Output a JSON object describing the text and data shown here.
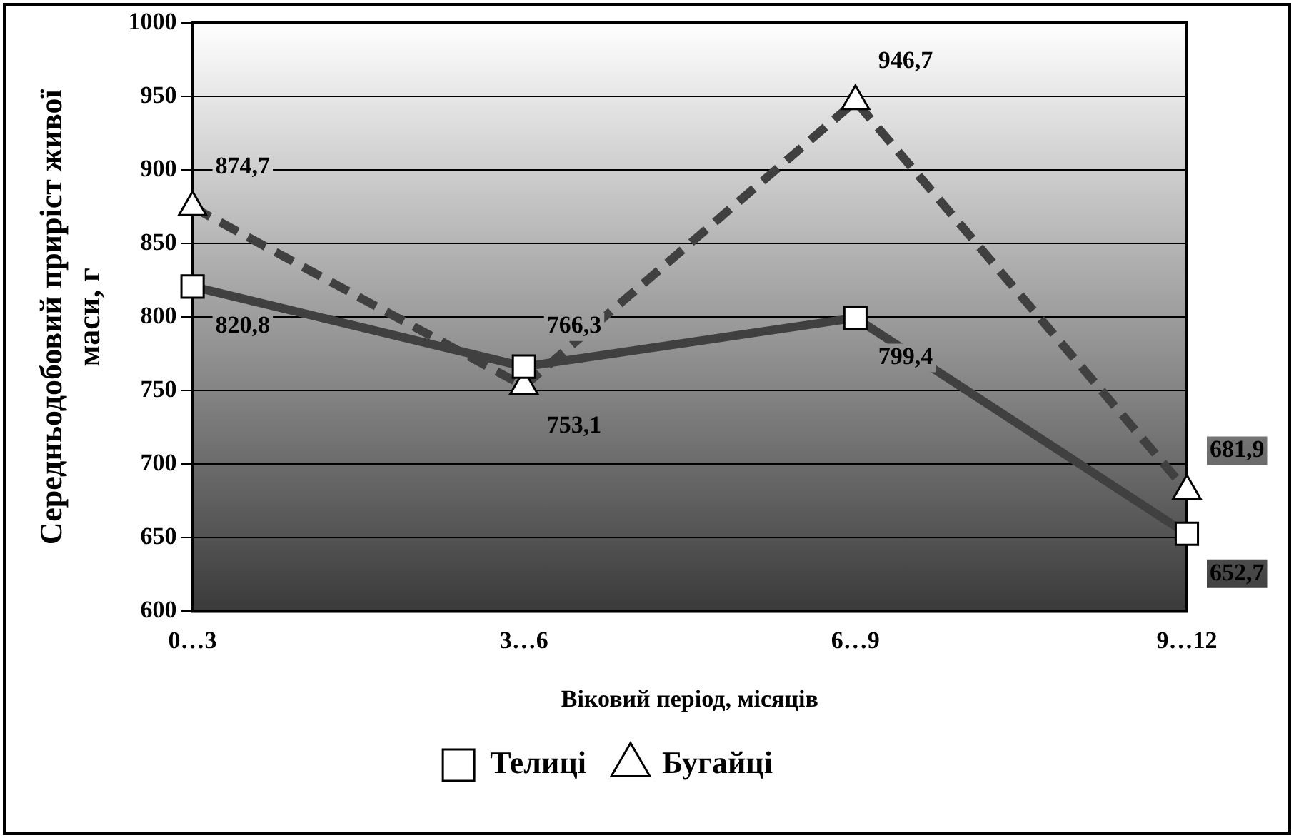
{
  "chart_data": {
    "type": "line",
    "xlabel": "Віковий період, місяців",
    "ylabel": "Середньодобовий приріст живої маси, г",
    "categories": [
      "0…3",
      "3…6",
      "6…9",
      "9…12"
    ],
    "series": [
      {
        "name": "Телиці",
        "color": "#404040",
        "values": [
          820.8,
          766.3,
          799.4,
          652.7
        ],
        "value_labels": [
          "820,8",
          "766,3",
          "799,4",
          "652,7"
        ],
        "marker": "square",
        "line_style": "solid"
      },
      {
        "name": "Бугайці",
        "color": "#404040",
        "values": [
          874.7,
          753.1,
          946.7,
          681.9
        ],
        "value_labels": [
          "874,7",
          "753,1",
          "946,7",
          "681,9"
        ],
        "marker": "triangle",
        "line_style": "dashed"
      }
    ],
    "ylim": [
      600,
      1000
    ],
    "yticks": [
      600,
      650,
      700,
      750,
      800,
      850,
      900,
      950,
      1000
    ],
    "grid": "y",
    "legend": "bottom"
  }
}
